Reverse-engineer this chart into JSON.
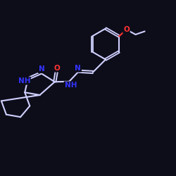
{
  "background_color": "#0d0d1a",
  "bond_color": "#d0d0ff",
  "atom_colors": {
    "N": "#3333ff",
    "O": "#ff3333"
  },
  "figsize": [
    2.5,
    2.5
  ],
  "dpi": 100
}
